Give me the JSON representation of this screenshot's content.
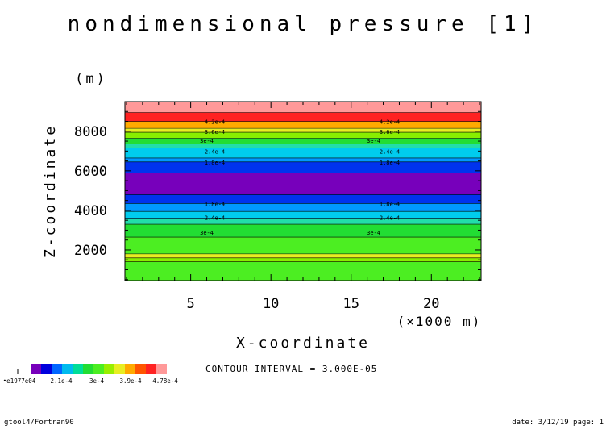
{
  "chart_data": {
    "type": "heatmap",
    "title": "nondimensional pressure [1]",
    "xlabel": "X-coordinate",
    "ylabel": "Z-coordinate",
    "x_unit": "(×1000 m)",
    "y_unit": "(m)",
    "xlim": [
      0.9,
      23.1
    ],
    "ylim": [
      450,
      9500
    ],
    "x_ticks": [
      5,
      10,
      15,
      20
    ],
    "y_ticks": [
      2000,
      4000,
      6000,
      8000
    ],
    "bands": [
      {
        "z0": 450,
        "z1": 1400,
        "color": "#4cee22"
      },
      {
        "z0": 1400,
        "z1": 1600,
        "color": "#88ee00"
      },
      {
        "z0": 1600,
        "z1": 1800,
        "color": "#e8ee22"
      },
      {
        "z0": 1800,
        "z1": 2650,
        "color": "#4cee22"
      },
      {
        "z0": 2650,
        "z1": 3300,
        "color": "#22dd33"
      },
      {
        "z0": 3300,
        "z1": 3600,
        "color": "#22ddaa"
      },
      {
        "z0": 3600,
        "z1": 3950,
        "color": "#00ccee"
      },
      {
        "z0": 3950,
        "z1": 4350,
        "color": "#0099ff"
      },
      {
        "z0": 4350,
        "z1": 4800,
        "color": "#0033ee"
      },
      {
        "z0": 4800,
        "z1": 5900,
        "color": "#7700bb"
      },
      {
        "z0": 5900,
        "z1": 6450,
        "color": "#0033ee"
      },
      {
        "z0": 6450,
        "z1": 6650,
        "color": "#0099ff"
      },
      {
        "z0": 6650,
        "z1": 7150,
        "color": "#00ccee"
      },
      {
        "z0": 7150,
        "z1": 7350,
        "color": "#22ddaa"
      },
      {
        "z0": 7350,
        "z1": 7650,
        "color": "#22dd33"
      },
      {
        "z0": 7650,
        "z1": 7950,
        "color": "#88ee00"
      },
      {
        "z0": 7950,
        "z1": 8150,
        "color": "#e8ee22"
      },
      {
        "z0": 8150,
        "z1": 8500,
        "color": "#ffaa00"
      },
      {
        "z0": 8500,
        "z1": 8950,
        "color": "#ff2222"
      },
      {
        "z0": 8950,
        "z1": 9500,
        "color": "#ff9999"
      }
    ],
    "contour_lines": [
      1400,
      1600,
      1800,
      2650,
      3300,
      3600,
      3950,
      4350,
      4800,
      5900,
      6450,
      6650,
      7150,
      7350,
      7650,
      7950,
      8150,
      8500,
      8950
    ],
    "contour_labels": [
      {
        "text": "4.2e-4",
        "z": 8500,
        "x": [
          6.5,
          17.4
        ]
      },
      {
        "text": "3.6e-4",
        "z": 8000,
        "x": [
          6.5,
          17.4
        ]
      },
      {
        "text": "3e-4",
        "z": 7550,
        "x": [
          6.0,
          16.4
        ]
      },
      {
        "text": "2.4e-4",
        "z": 7000,
        "x": [
          6.5,
          17.4
        ]
      },
      {
        "text": "1.8e-4",
        "z": 6450,
        "x": [
          6.5,
          17.4
        ]
      },
      {
        "text": "1.8e-4",
        "z": 4350,
        "x": [
          6.5,
          17.4
        ]
      },
      {
        "text": "2.4e-4",
        "z": 3650,
        "x": [
          6.5,
          17.4
        ]
      },
      {
        "text": "3e-4",
        "z": 2900,
        "x": [
          6.0,
          16.4
        ]
      }
    ],
    "colorbar": {
      "colors": [
        "#7700bb",
        "#0000dd",
        "#0066ff",
        "#00bbee",
        "#00dd99",
        "#22dd33",
        "#4cee22",
        "#99ee00",
        "#e8ee22",
        "#ffaa00",
        "#ff5500",
        "#ff2222",
        "#ff9999"
      ],
      "labels": [
        "•e1977e04",
        "2.1e-4",
        "3e-4",
        "3.9e-4",
        "4.78e-4"
      ]
    }
  },
  "footer": {
    "contour_interval": "CONTOUR INTERVAL = 3.000E-05",
    "left": "gtool4/Fortran90",
    "right": "date: 3/12/19 page: 1"
  }
}
